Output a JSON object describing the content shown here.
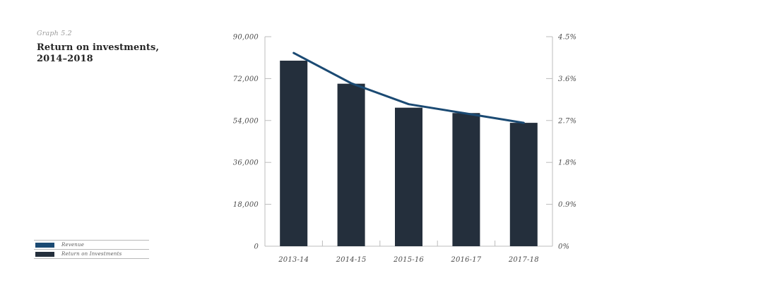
{
  "page": {
    "background": "#ffffff"
  },
  "header": {
    "graph_label": "Graph 5.2",
    "title": "Return on investments, 2014–2018"
  },
  "legend": {
    "position": "bottom-left",
    "items": [
      {
        "label": "Revenue",
        "color": "#1b4a73",
        "marker": "line-series-swatch"
      },
      {
        "label": "Return on Investments",
        "color": "#242f3c",
        "marker": "bar-series-swatch"
      }
    ]
  },
  "chart_data": {
    "type": "bar+line",
    "title": "Return on investments, 2014–2018",
    "categories": [
      "2013-14",
      "2014-15",
      "2015-16",
      "2016-17",
      "2017-18"
    ],
    "series": [
      {
        "name": "Return on Investments",
        "type": "bar",
        "axis": "left",
        "color": "#242f3c",
        "values": [
          79700,
          69800,
          59500,
          57200,
          53000
        ]
      },
      {
        "name": "Revenue",
        "type": "line",
        "axis": "right",
        "color": "#1b4a73",
        "values": [
          4.15,
          3.5,
          3.05,
          2.85,
          2.65
        ]
      }
    ],
    "left_axis": {
      "min": 0,
      "max": 90000,
      "tick_labels": [
        "90,000",
        "72,000",
        "54,000",
        "36,000",
        "18,000",
        "0"
      ]
    },
    "right_axis": {
      "min": 0,
      "max": 4.5,
      "tick_labels": [
        "4.5%",
        "3.6%",
        "2.7%",
        "1.8%",
        "0.9%",
        "0%"
      ]
    },
    "grid": false,
    "legend_position": "bottom-left"
  }
}
